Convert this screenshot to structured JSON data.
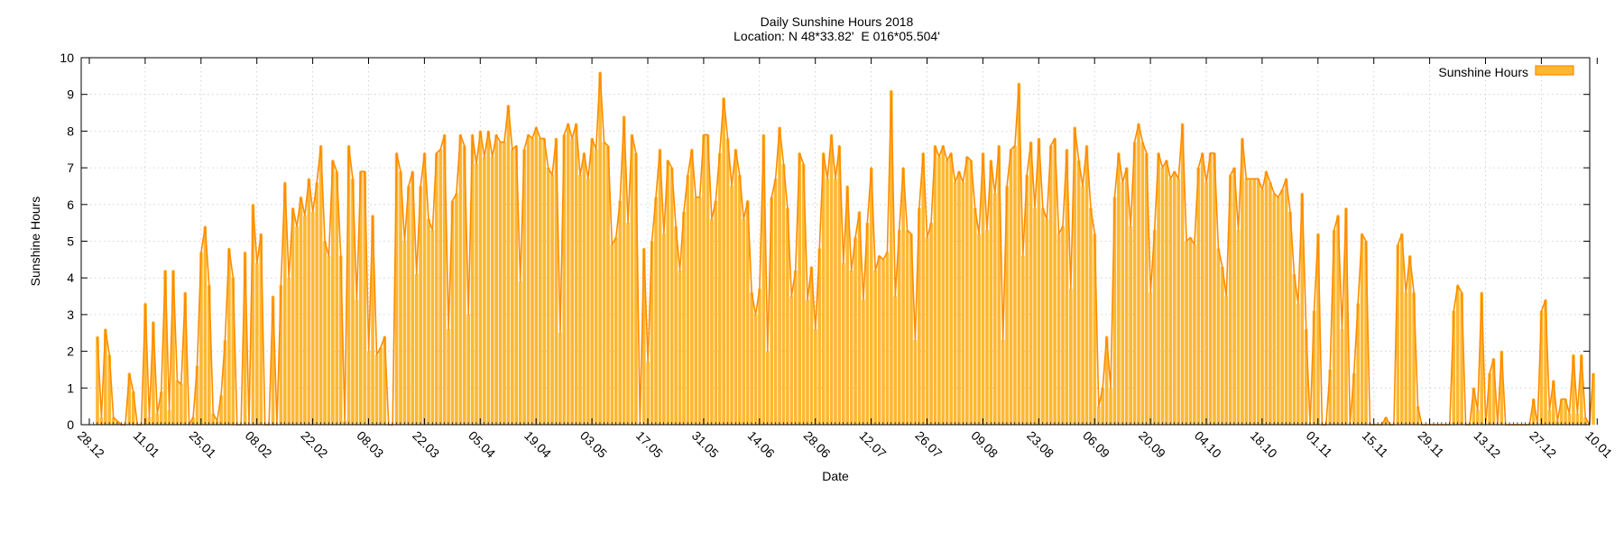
{
  "chart_data": {
    "type": "bar",
    "title": "Daily Sunshine Hours 2018",
    "subtitle": "Location: N 48*33.82'  E 016*05.504'",
    "xlabel": "Date",
    "ylabel": "Sunshine Hours",
    "ylim": [
      0,
      10
    ],
    "yticks": [
      "0",
      "1",
      "2",
      "3",
      "4",
      "5",
      "6",
      "7",
      "8",
      "9",
      "10"
    ],
    "x_tick_labels": [
      "28.12",
      "11.01",
      "25.01",
      "08.02",
      "22.02",
      "08.03",
      "22.03",
      "05.04",
      "19.04",
      "03.05",
      "17.05",
      "31.05",
      "14.06",
      "28.06",
      "12.07",
      "26.07",
      "09.08",
      "23.08",
      "06.09",
      "20.09",
      "04.10",
      "18.10",
      "01.11",
      "15.11",
      "29.11",
      "13.12",
      "27.12",
      "10.01"
    ],
    "grid": true,
    "legend_position": "top-right",
    "series": [
      {
        "name": "Sunshine Hours",
        "color": "#FFA500",
        "values": [
          2.4,
          0.2,
          2.6,
          1.9,
          0.2,
          0.1,
          0,
          0,
          1.4,
          0.9,
          0,
          0,
          3.3,
          0.2,
          2.8,
          0.3,
          0.9,
          4.2,
          0.4,
          4.2,
          1.2,
          1.1,
          3.6,
          0,
          0.2,
          1.6,
          4.7,
          5.4,
          3.8,
          0.3,
          0.1,
          0.8,
          2.3,
          4.8,
          4.0,
          0,
          0,
          4.7,
          0,
          6.0,
          4.4,
          5.2,
          0,
          0,
          3.5,
          0,
          3.8,
          6.6,
          4.0,
          5.9,
          5.4,
          6.2,
          5.7,
          6.7,
          5.8,
          6.6,
          7.6,
          5.0,
          4.6,
          7.2,
          6.9,
          4.6,
          0.1,
          7.6,
          6.7,
          3.4,
          6.9,
          6.9,
          2.0,
          5.7,
          1.9,
          2.1,
          2.4,
          0,
          0,
          7.4,
          6.9,
          5.0,
          6.5,
          6.9,
          4.1,
          6.5,
          7.4,
          5.6,
          5.3,
          7.4,
          7.5,
          7.9,
          2.6,
          6.1,
          6.3,
          7.9,
          7.6,
          3.0,
          7.9,
          7.1,
          8.0,
          7.3,
          8.0,
          7.3,
          7.9,
          7.7,
          7.7,
          8.7,
          7.5,
          7.6,
          3.9,
          7.5,
          7.9,
          7.8,
          8.1,
          7.8,
          7.8,
          7.0,
          6.8,
          7.8,
          2.5,
          7.9,
          8.2,
          7.8,
          8.2,
          6.8,
          7.4,
          6.7,
          7.8,
          7.5,
          9.6,
          7.7,
          7.6,
          4.9,
          5.1,
          6.1,
          8.4,
          5.5,
          7.9,
          7.4,
          0,
          4.8,
          1.7,
          5.0,
          6.2,
          7.5,
          5.2,
          7.2,
          7.0,
          5.4,
          4.2,
          5.8,
          6.8,
          7.5,
          6.2,
          6.2,
          7.9,
          7.9,
          5.6,
          6.1,
          7.4,
          8.9,
          7.8,
          6.5,
          7.5,
          6.8,
          5.6,
          6.1,
          3.6,
          3.0,
          3.7,
          7.9,
          2.0,
          6.2,
          6.7,
          8.1,
          7.1,
          5.9,
          3.5,
          4.2,
          7.4,
          7.1,
          3.4,
          4.3,
          2.6,
          4.8,
          7.4,
          6.7,
          7.9,
          6.7,
          7.6,
          4.4,
          6.5,
          4.2,
          5.1,
          5.8,
          3.4,
          5.5,
          7.0,
          4.2,
          4.6,
          4.5,
          4.7,
          9.1,
          3.5,
          5.3,
          7.0,
          5.3,
          5.2,
          2.3,
          5.9,
          7.4,
          5.1,
          5.5,
          7.6,
          7.3,
          7.6,
          7.2,
          7.4,
          6.6,
          6.9,
          6.6,
          7.3,
          7.2,
          5.9,
          5.2,
          7.4,
          5.3,
          7.2,
          6.3,
          7.6,
          2.3,
          6.5,
          7.5,
          7.6,
          9.3,
          4.6,
          6.8,
          7.7,
          5.9,
          7.8,
          5.9,
          5.6,
          7.6,
          7.8,
          5.2,
          5.4,
          7.5,
          3.7,
          8.1,
          7.2,
          6.5,
          7.6,
          5.9,
          5.2,
          0.5,
          1.0,
          2.4,
          1.0,
          6.2,
          7.4,
          6.6,
          7.0,
          5.4,
          7.7,
          8.2,
          7.7,
          7.4,
          3.6,
          5.3,
          7.4,
          7.0,
          7.2,
          6.7,
          6.9,
          6.7,
          8.2,
          5.0,
          5.1,
          4.9,
          7.0,
          7.4,
          6.6,
          7.4,
          7.4,
          4.8,
          4.3,
          3.5,
          6.8,
          7.0,
          5.3,
          7.8,
          6.7,
          6.7,
          6.7,
          6.7,
          6.4,
          6.9,
          6.6,
          6.3,
          6.2,
          6.4,
          6.7,
          5.8,
          4.1,
          3.3,
          6.3,
          2.6,
          0,
          3.1,
          5.2,
          0,
          0,
          1.5,
          5.3,
          5.7,
          2.6,
          5.9,
          0,
          1.4,
          3.3,
          5.2,
          5.0,
          0,
          0,
          0,
          0,
          0.2,
          0,
          0,
          4.9,
          5.2,
          3.6,
          4.6,
          3.6,
          0.5,
          0,
          0,
          0,
          0,
          0,
          0,
          0,
          0,
          3.1,
          3.8,
          3.6,
          0,
          0,
          1.0,
          0.4,
          3.6,
          0,
          1.4,
          1.8,
          0,
          2.0,
          0,
          0,
          0,
          0,
          0,
          0,
          0,
          0.7,
          0,
          3.1,
          3.4,
          0.4,
          1.2,
          0.1,
          0.7,
          0.7,
          0.3,
          1.9,
          0.3,
          1.9,
          0.2,
          0,
          1.4
        ]
      }
    ]
  }
}
